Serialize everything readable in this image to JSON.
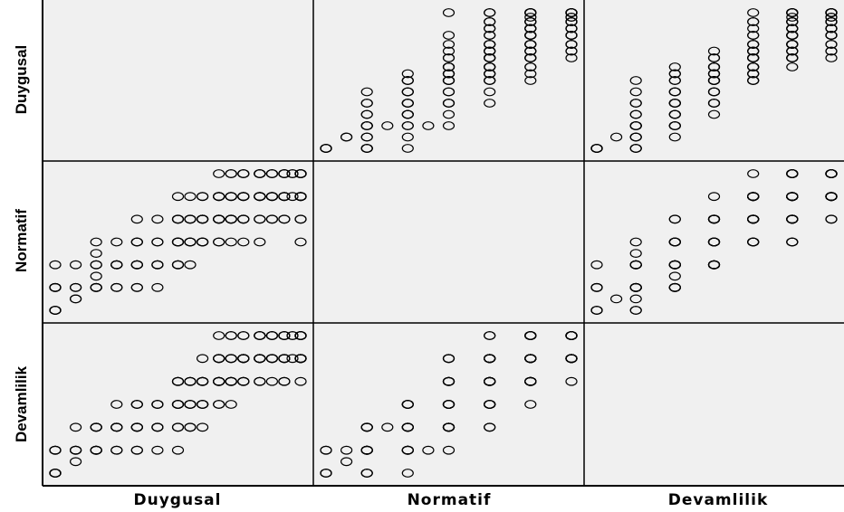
{
  "chart_data": {
    "type": "scatter",
    "variables": [
      "Duygusal",
      "Normatif",
      "Devamlilik"
    ],
    "x_labels": [
      "Duygusal",
      "Normatif",
      "Devamlilik"
    ],
    "y_labels": [
      "Duygusal",
      "Normatif",
      "Devamlilik"
    ],
    "grid": false,
    "legend": "none",
    "point_color": "#000000",
    "panel_color": "#f0f0f0",
    "observations": [
      [
        1,
        1,
        1
      ],
      [
        1,
        1,
        2
      ],
      [
        1,
        2,
        1
      ],
      [
        1,
        1,
        1
      ],
      [
        1,
        2,
        2
      ],
      [
        1,
        2,
        1
      ],
      [
        1,
        1,
        2
      ],
      [
        1,
        3,
        1
      ],
      [
        1,
        2,
        1
      ],
      [
        1,
        1,
        1
      ],
      [
        1.5,
        2,
        2
      ],
      [
        1.5,
        1.5,
        1.5
      ],
      [
        1.5,
        3,
        2
      ],
      [
        1.5,
        2,
        3
      ],
      [
        1.5,
        1.5,
        2
      ],
      [
        2,
        2,
        2
      ],
      [
        2,
        3,
        2
      ],
      [
        2,
        2.5,
        3
      ],
      [
        2,
        2,
        2
      ],
      [
        2,
        3,
        3
      ],
      [
        2,
        2,
        2
      ],
      [
        2,
        3.5,
        2
      ],
      [
        2,
        4,
        3
      ],
      [
        2,
        2,
        3
      ],
      [
        2.5,
        3,
        3
      ],
      [
        2.5,
        2,
        2
      ],
      [
        2.5,
        3,
        4
      ],
      [
        2.5,
        4,
        3
      ],
      [
        2.5,
        3,
        2
      ],
      [
        2.5,
        2,
        3
      ],
      [
        2.5,
        3,
        3
      ],
      [
        3,
        3,
        3
      ],
      [
        3,
        4,
        3
      ],
      [
        3,
        3,
        4
      ],
      [
        3,
        2,
        3
      ],
      [
        3,
        4,
        4
      ],
      [
        3,
        3,
        2
      ],
      [
        3,
        5,
        3
      ],
      [
        3,
        3,
        3
      ],
      [
        3,
        4,
        4
      ],
      [
        3,
        2,
        2
      ],
      [
        3.5,
        3,
        3
      ],
      [
        3.5,
        4,
        4
      ],
      [
        3.5,
        3,
        2
      ],
      [
        3.5,
        4,
        3
      ],
      [
        3.5,
        5,
        4
      ],
      [
        3.5,
        3,
        4
      ],
      [
        3.5,
        2,
        3
      ],
      [
        4,
        4,
        4
      ],
      [
        4,
        3,
        4
      ],
      [
        4,
        4,
        5
      ],
      [
        4,
        5,
        4
      ],
      [
        4,
        3,
        3
      ],
      [
        4,
        4,
        4
      ],
      [
        4,
        5,
        5
      ],
      [
        4,
        4,
        3
      ],
      [
        4,
        3,
        4
      ],
      [
        4,
        4,
        2
      ],
      [
        4,
        5,
        4
      ],
      [
        4,
        6,
        5
      ],
      [
        4.3,
        4,
        4
      ],
      [
        4.3,
        5,
        5
      ],
      [
        4.3,
        4,
        3
      ],
      [
        4.3,
        3,
        4
      ],
      [
        4.3,
        5,
        4
      ],
      [
        4.3,
        4,
        5
      ],
      [
        4.3,
        6,
        5
      ],
      [
        4.3,
        4,
        4
      ],
      [
        4.3,
        5,
        3
      ],
      [
        4.6,
        4,
        4
      ],
      [
        4.6,
        5,
        5
      ],
      [
        4.6,
        4,
        5
      ],
      [
        4.6,
        6,
        5
      ],
      [
        4.6,
        5,
        4
      ],
      [
        4.6,
        4,
        3
      ],
      [
        4.6,
        5,
        6
      ],
      [
        4.6,
        6,
        4
      ],
      [
        4.6,
        4,
        4
      ],
      [
        4.6,
        5,
        5
      ],
      [
        5,
        5,
        5
      ],
      [
        5,
        6,
        5
      ],
      [
        5,
        5,
        6
      ],
      [
        5,
        4,
        5
      ],
      [
        5,
        6,
        6
      ],
      [
        5,
        5,
        4
      ],
      [
        5,
        4,
        4
      ],
      [
        5,
        6,
        5
      ],
      [
        5,
        5,
        5
      ],
      [
        5,
        7,
        6
      ],
      [
        5,
        6,
        7
      ],
      [
        5,
        5,
        6
      ],
      [
        5.3,
        5,
        5
      ],
      [
        5.3,
        6,
        6
      ],
      [
        5.3,
        5,
        6
      ],
      [
        5.3,
        6,
        5
      ],
      [
        5.3,
        4,
        5
      ],
      [
        5.3,
        7,
        6
      ],
      [
        5.3,
        5,
        4
      ],
      [
        5.3,
        6,
        7
      ],
      [
        5.3,
        5,
        5
      ],
      [
        5.3,
        7,
        7
      ],
      [
        5.6,
        6,
        6
      ],
      [
        5.6,
        5,
        6
      ],
      [
        5.6,
        6,
        5
      ],
      [
        5.6,
        7,
        6
      ],
      [
        5.6,
        5,
        5
      ],
      [
        5.6,
        6,
        7
      ],
      [
        5.6,
        7,
        7
      ],
      [
        5.6,
        5,
        6
      ],
      [
        5.6,
        6,
        6
      ],
      [
        5.6,
        4,
        6
      ],
      [
        5.6,
        7,
        5
      ],
      [
        6,
        6,
        6
      ],
      [
        6,
        7,
        6
      ],
      [
        6,
        6,
        7
      ],
      [
        6,
        5,
        6
      ],
      [
        6,
        7,
        7
      ],
      [
        6,
        6,
        5
      ],
      [
        6,
        5,
        5
      ],
      [
        6,
        7,
        6
      ],
      [
        6,
        6,
        6
      ],
      [
        6,
        7,
        7
      ],
      [
        6,
        4,
        6
      ],
      [
        6,
        6,
        7
      ],
      [
        6.3,
        6,
        6
      ],
      [
        6.3,
        7,
        7
      ],
      [
        6.3,
        6,
        7
      ],
      [
        6.3,
        7,
        6
      ],
      [
        6.3,
        5,
        6
      ],
      [
        6.3,
        6,
        5
      ],
      [
        6.3,
        7,
        7
      ],
      [
        6.3,
        5,
        7
      ],
      [
        6.3,
        6,
        6
      ],
      [
        6.6,
        6,
        6
      ],
      [
        6.6,
        7,
        7
      ],
      [
        6.6,
        7,
        6
      ],
      [
        6.6,
        6,
        7
      ],
      [
        6.6,
        5,
        6
      ],
      [
        6.6,
        7,
        7
      ],
      [
        6.6,
        6,
        5
      ],
      [
        6.6,
        5,
        5
      ],
      [
        6.6,
        6,
        6
      ],
      [
        6.6,
        7,
        7
      ],
      [
        7,
        6,
        6
      ],
      [
        7,
        7,
        7
      ],
      [
        7,
        7,
        6
      ],
      [
        7,
        6,
        7
      ],
      [
        7,
        7,
        7
      ],
      [
        7,
        5,
        6
      ],
      [
        7,
        6,
        6
      ],
      [
        7,
        7,
        7
      ],
      [
        7,
        4,
        6
      ],
      [
        7,
        6,
        5
      ],
      [
        7,
        7,
        7
      ],
      [
        7,
        5,
        7
      ],
      [
        7,
        6,
        7
      ],
      [
        7,
        7,
        6
      ],
      [
        7,
        7,
        7
      ],
      [
        7,
        6,
        6
      ],
      [
        7,
        7,
        7
      ],
      [
        6.8,
        7,
        6
      ],
      [
        6.8,
        6,
        7
      ],
      [
        6.8,
        7,
        7
      ]
    ]
  }
}
